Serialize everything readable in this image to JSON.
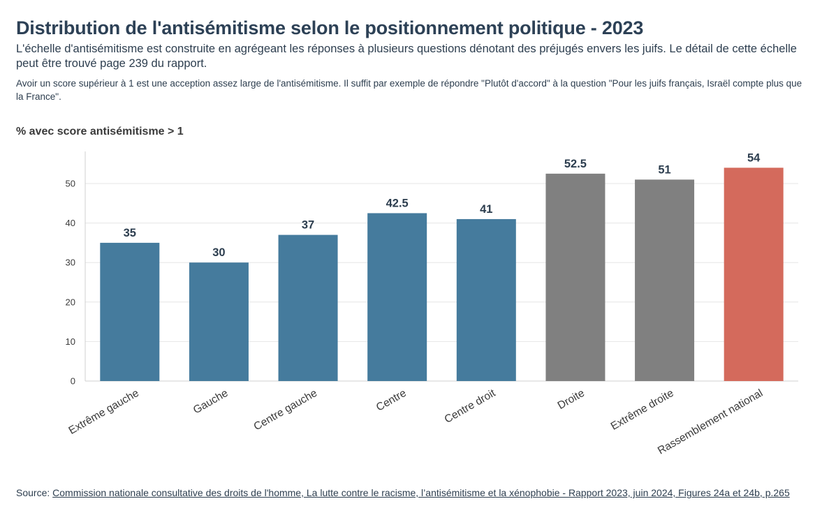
{
  "title": "Distribution de l'antisémitisme selon le positionnement politique - 2023",
  "subtitle": "L'échelle d'antisémitisme est construite en agrégeant les réponses à plusieurs questions dénotant des préjugés envers les juifs. Le détail de cette échelle peut être trouvé page 239 du rapport.",
  "note": "Avoir un score supérieur à 1 est une acception assez large de l'antisémitisme. Il suffit par exemple de répondre \"Plutôt d'accord\" à la question \"Pour les juifs français, Israël compte plus que la France\".",
  "source": {
    "prefix": "Source: ",
    "link_text": "Commission nationale consultative des droits de l'homme, La lutte contre le racisme, l’antisémitisme et la xénophobie - Rapport 2023, juin 2024, Figures 24a et 24b, p.265"
  },
  "colors": {
    "left": "#457b9d",
    "right": "#808080",
    "rn": "#d46a5c",
    "grid": "#e6e6e6",
    "axis": "#d0d0d0",
    "text": "#2d3e4f",
    "tick": "#3a3a3a"
  },
  "chart_data": {
    "type": "bar",
    "ylabel": "% avec score antisémitisme > 1",
    "xlabel": "",
    "categories": [
      "Extrême gauche",
      "Gauche",
      "Centre gauche",
      "Centre",
      "Centre droit",
      "Droite",
      "Extrême droite",
      "Rassemblement national"
    ],
    "values": [
      35,
      30,
      37,
      42.5,
      41,
      52.5,
      51,
      54
    ],
    "data_labels": [
      "35",
      "30",
      "37",
      "42.5",
      "41",
      "52.5",
      "51",
      "54"
    ],
    "bar_colors": [
      "left",
      "left",
      "left",
      "left",
      "left",
      "right",
      "right",
      "rn"
    ],
    "ylim": [
      0,
      58
    ],
    "yticks": [
      0,
      10,
      20,
      30,
      40,
      50
    ],
    "grid": true,
    "legend": "none"
  }
}
